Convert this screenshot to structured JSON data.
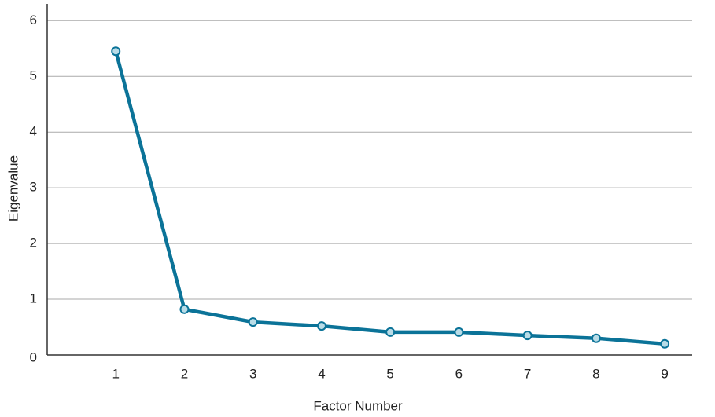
{
  "chart_data": {
    "type": "line",
    "x_label": "Factor Number",
    "y_label": "Eigenvalue",
    "categories": [
      "1",
      "2",
      "3",
      "4",
      "5",
      "6",
      "7",
      "8",
      "9"
    ],
    "series": [
      {
        "name": "Eigenvalue",
        "color": "#0b7398",
        "marker_fill": "#b9dce7",
        "values": [
          5.45,
          0.82,
          0.59,
          0.52,
          0.41,
          0.41,
          0.35,
          0.3,
          0.2
        ]
      }
    ],
    "ylim": [
      0,
      6.3
    ],
    "yticks": [
      0,
      1,
      2,
      3,
      4,
      5,
      6
    ],
    "grid": true
  }
}
